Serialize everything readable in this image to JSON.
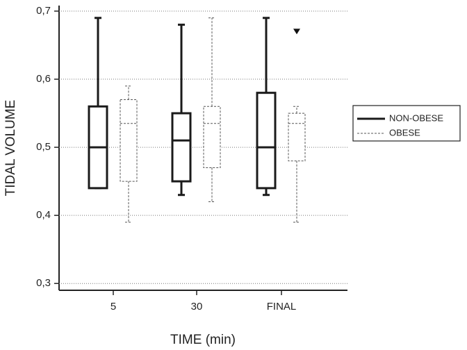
{
  "chart_data": {
    "type": "box",
    "x_label": "TIME (min)",
    "y_label": "TIDAL VOLUME",
    "categories": [
      "5",
      "30",
      "FINAL"
    ],
    "ylim": [
      0.29,
      0.7
    ],
    "yticks": [
      {
        "value": 0.3,
        "label": "0,3"
      },
      {
        "value": 0.4,
        "label": "0,4"
      },
      {
        "value": 0.5,
        "label": "0,5"
      },
      {
        "value": 0.6,
        "label": "0,6"
      },
      {
        "value": 0.7,
        "label": "0,7"
      }
    ],
    "grid": true,
    "legend": "right",
    "series": [
      {
        "name": "NON-OBESE",
        "color": "#1a1a1a",
        "line_style": "solid",
        "min": [
          0.44,
          0.43,
          0.43
        ],
        "q1": [
          0.44,
          0.45,
          0.44
        ],
        "median": [
          0.5,
          0.51,
          0.5
        ],
        "q3": [
          0.56,
          0.55,
          0.58
        ],
        "max": [
          0.69,
          0.68,
          0.69
        ],
        "outliers": [
          [],
          [],
          []
        ]
      },
      {
        "name": "OBESE",
        "color": "#555555",
        "line_style": "dashed",
        "min": [
          0.39,
          0.42,
          0.39
        ],
        "q1": [
          0.45,
          0.47,
          0.48
        ],
        "median": [
          0.535,
          0.535,
          0.535
        ],
        "q3": [
          0.57,
          0.56,
          0.55
        ],
        "max": [
          0.59,
          0.69,
          0.56
        ],
        "outliers": [
          [],
          [],
          [
            0.67
          ]
        ]
      }
    ]
  }
}
